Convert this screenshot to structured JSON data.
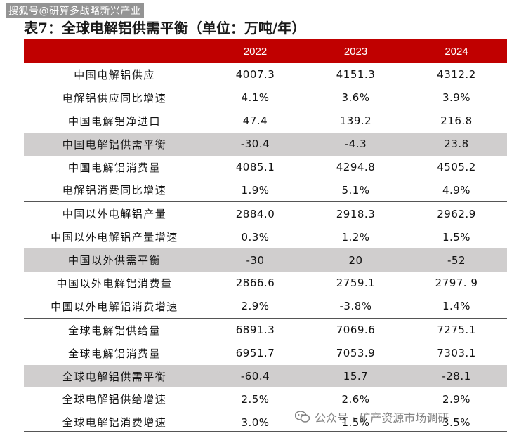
{
  "watermark_top": "搜狐号@研算多战略新兴产业",
  "title": "表7：全球电解铝供需平衡（单位：万吨/年）",
  "table": {
    "headers": [
      "",
      "2022",
      "2023",
      "2024"
    ],
    "rows": [
      {
        "label": "中国电解铝供应",
        "v2022": "4007.3",
        "v2023": "4151.3",
        "v2024": "4312.2",
        "shaded": false,
        "group_start": false
      },
      {
        "label": "电解铝供应同比增速",
        "v2022": "4.1%",
        "v2023": "3.6%",
        "v2024": "3.9%",
        "shaded": false,
        "group_start": false
      },
      {
        "label": "中国电解铝净进口",
        "v2022": "47.4",
        "v2023": "139.2",
        "v2024": "216.8",
        "shaded": false,
        "group_start": false
      },
      {
        "label": "中国电解铝供需平衡",
        "v2022": "-30.4",
        "v2023": "-4.3",
        "v2024": "23.8",
        "shaded": true,
        "group_start": false
      },
      {
        "label": "中国电解铝消费量",
        "v2022": "4085.1",
        "v2023": "4294.8",
        "v2024": "4505.2",
        "shaded": false,
        "group_start": false
      },
      {
        "label": "电解铝消费同比增速",
        "v2022": "1.9%",
        "v2023": "5.1%",
        "v2024": "4.9%",
        "shaded": false,
        "group_start": false
      },
      {
        "label": "中国以外电解铝产量",
        "v2022": "2884.0",
        "v2023": "2918.3",
        "v2024": "2962.9",
        "shaded": false,
        "group_start": true
      },
      {
        "label": "中国以外电解铝产量增速",
        "v2022": "0.3%",
        "v2023": "1.2%",
        "v2024": "1.5%",
        "shaded": false,
        "group_start": false
      },
      {
        "label": "中国以外供需平衡",
        "v2022": "-30",
        "v2023": "20",
        "v2024": "-52",
        "shaded": true,
        "group_start": false
      },
      {
        "label": "中国以外电解铝消费量",
        "v2022": "2866.6",
        "v2023": "2759.1",
        "v2024": "2797. 9",
        "shaded": false,
        "group_start": false
      },
      {
        "label": "中国以外电解铝消费增速",
        "v2022": "2.9%",
        "v2023": "-3.8%",
        "v2024": "1.4%",
        "shaded": false,
        "group_start": false
      },
      {
        "label": "全球电解铝供给量",
        "v2022": "6891.3",
        "v2023": "7069.6",
        "v2024": "7275.1",
        "shaded": false,
        "group_start": true
      },
      {
        "label": "全球电解铝消费量",
        "v2022": "6951.7",
        "v2023": "7053.9",
        "v2024": "7303.1",
        "shaded": false,
        "group_start": false
      },
      {
        "label": "全球电解铝供需平衡",
        "v2022": "-60.4",
        "v2023": "15.7",
        "v2024": "-28.1",
        "shaded": true,
        "group_start": false
      },
      {
        "label": "全球电解铝供给增速",
        "v2022": "2.5%",
        "v2023": "2.6%",
        "v2024": "2.9%",
        "shaded": false,
        "group_start": false
      },
      {
        "label": "全球电解铝消费增速",
        "v2022": "3.0%",
        "v2023": "1.5%",
        "v2024": "3.5%",
        "shaded": false,
        "group_start": false
      }
    ]
  },
  "watermark_bottom": "公众号 · 矿产资源市场调研",
  "colors": {
    "header_bg": "#c00000",
    "shade_bg": "#d0cece"
  }
}
